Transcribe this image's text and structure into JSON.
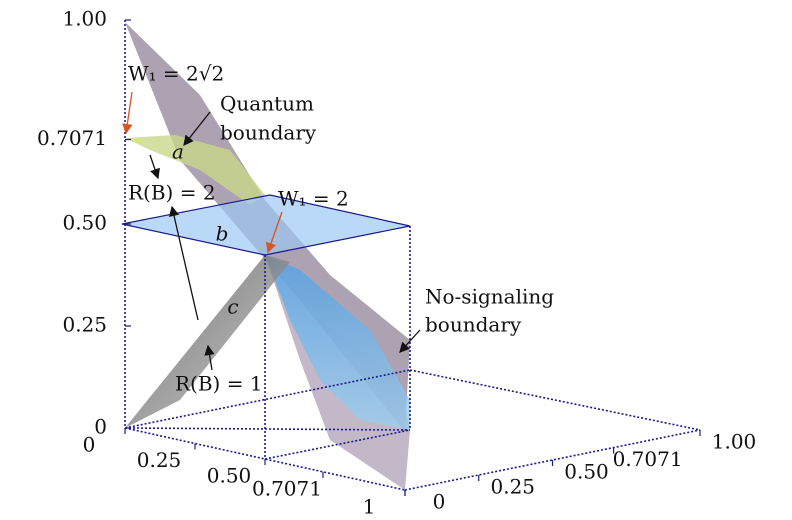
{
  "chart_data": {
    "type": "surface3d",
    "zlim": [
      0,
      1
    ],
    "zticks": [
      0,
      0.25,
      {
        "value": 0.5,
        "label": "0.50"
      },
      0.7071,
      {
        "value": 1,
        "label": "1.00"
      }
    ],
    "xlim": [
      0,
      1
    ],
    "xticks": [
      0,
      0.25,
      {
        "value": 0.5,
        "label": "0.50"
      },
      0.7071,
      1
    ],
    "ylim": [
      0,
      1
    ],
    "yticks": [
      0,
      0.25,
      {
        "value": 0.5,
        "label": "0.50"
      },
      0.7071,
      {
        "value": 1,
        "label": "1.00"
      }
    ],
    "annotations": [
      "W₁ = 2√2",
      "Quantum",
      "boundary",
      "a",
      "R(B) = 2",
      "W₁ = 2",
      "b",
      "c",
      "No-signaling",
      "boundary",
      "R(B) = 1"
    ]
  }
}
